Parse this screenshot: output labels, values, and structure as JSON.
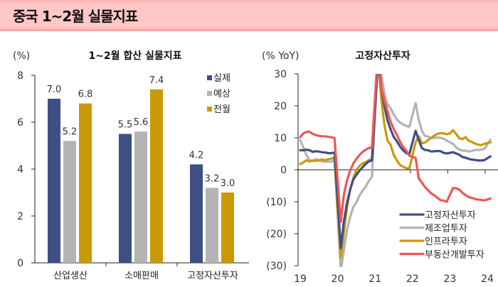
{
  "header": {
    "title": "중국 1~2월 실물지표",
    "background": "#ffc7c7"
  },
  "chart_data": [
    {
      "type": "bar",
      "title": "1~2월 합산 실물지표",
      "ylabel": "(%)",
      "xlabel": "",
      "ylim": [
        0,
        8
      ],
      "yticks": [
        "0",
        "2",
        "4",
        "6",
        "8"
      ],
      "categories": [
        "산업생산",
        "소매판매",
        "고정자산투자"
      ],
      "series": [
        {
          "name": "실제",
          "color": "#3f4f86",
          "values": [
            7.0,
            5.5,
            4.2
          ],
          "labels": [
            "7.0",
            "5.5",
            "4.2"
          ]
        },
        {
          "name": "예상",
          "color": "#b3b3b3",
          "values": [
            5.2,
            5.6,
            3.2
          ],
          "labels": [
            "5.2",
            "5.6",
            "3.2"
          ]
        },
        {
          "name": "전월",
          "color": "#c99a06",
          "values": [
            6.8,
            7.4,
            3.0
          ],
          "labels": [
            "6.8",
            "7.4",
            "3.0"
          ]
        }
      ],
      "legend_position": "upper right",
      "grid": false
    },
    {
      "type": "line",
      "title": "고정자산투자",
      "ylabel": "(% YoY)",
      "xlabel": "",
      "ylim": [
        -30,
        30
      ],
      "yticks": [
        "(30)",
        "(20)",
        "(10)",
        "0",
        "10",
        "20",
        "30"
      ],
      "xticks": [
        "19",
        "20",
        "21",
        "22",
        "23",
        "24"
      ],
      "x_unit": "monthly, Jan 2019 - Feb 2024 (year-to-date YoY)",
      "legend_position": "lower right",
      "grid": false,
      "series": [
        {
          "name": "고정자산투자",
          "color": "#3f4f86",
          "points": [
            [
              0,
              6.1
            ],
            [
              1,
              6.1
            ],
            [
              2,
              6.3
            ],
            [
              3,
              6.1
            ],
            [
              4,
              5.6
            ],
            [
              5,
              5.8
            ],
            [
              6,
              5.7
            ],
            [
              7,
              5.5
            ],
            [
              8,
              5.4
            ],
            [
              9,
              5.2
            ],
            [
              10,
              5.2
            ],
            [
              11,
              5.4
            ],
            [
              13,
              -24.5
            ],
            [
              14,
              -16.1
            ],
            [
              15,
              -10.3
            ],
            [
              16,
              -6.3
            ],
            [
              17,
              -3.1
            ],
            [
              18,
              -1.6
            ],
            [
              19,
              -0.3
            ],
            [
              20,
              0.8
            ],
            [
              21,
              1.8
            ],
            [
              22,
              2.6
            ],
            [
              23,
              2.9
            ],
            [
              25,
              35.0
            ],
            [
              26,
              25.6
            ],
            [
              27,
              19.9
            ],
            [
              28,
              15.4
            ],
            [
              29,
              12.6
            ],
            [
              30,
              10.3
            ],
            [
              31,
              8.9
            ],
            [
              32,
              7.3
            ],
            [
              33,
              6.1
            ],
            [
              34,
              5.2
            ],
            [
              35,
              4.9
            ],
            [
              37,
              12.2
            ],
            [
              38,
              9.3
            ],
            [
              39,
              6.8
            ],
            [
              40,
              6.2
            ],
            [
              41,
              6.1
            ],
            [
              42,
              5.7
            ],
            [
              43,
              5.8
            ],
            [
              44,
              5.9
            ],
            [
              45,
              5.8
            ],
            [
              46,
              5.3
            ],
            [
              47,
              5.1
            ],
            [
              49,
              5.5
            ],
            [
              50,
              5.1
            ],
            [
              51,
              4.7
            ],
            [
              52,
              4.0
            ],
            [
              53,
              3.8
            ],
            [
              54,
              3.4
            ],
            [
              55,
              3.2
            ],
            [
              56,
              3.1
            ],
            [
              57,
              2.9
            ],
            [
              58,
              2.9
            ],
            [
              59,
              3.0
            ],
            [
              61,
              4.2
            ]
          ]
        },
        {
          "name": "제조업투자",
          "color": "#b3b3b3",
          "points": [
            [
              0,
              9.3
            ],
            [
              1,
              7.0
            ],
            [
              2,
              4.6
            ],
            [
              3,
              3.0
            ],
            [
              4,
              2.7
            ],
            [
              5,
              3.3
            ],
            [
              6,
              3.0
            ],
            [
              7,
              2.6
            ],
            [
              8,
              2.5
            ],
            [
              9,
              2.6
            ],
            [
              10,
              2.5
            ],
            [
              11,
              3.1
            ],
            [
              13,
              -31.5
            ],
            [
              14,
              -25.2
            ],
            [
              15,
              -18.8
            ],
            [
              16,
              -14.8
            ],
            [
              17,
              -11.7
            ],
            [
              18,
              -10.2
            ],
            [
              19,
              -8.1
            ],
            [
              20,
              -6.5
            ],
            [
              21,
              -5.3
            ],
            [
              22,
              -3.5
            ],
            [
              23,
              -2.2
            ],
            [
              25,
              37.3
            ],
            [
              26,
              29.8
            ],
            [
              27,
              23.8
            ],
            [
              28,
              20.4
            ],
            [
              29,
              19.2
            ],
            [
              30,
              17.3
            ],
            [
              31,
              15.7
            ],
            [
              32,
              14.8
            ],
            [
              33,
              14.2
            ],
            [
              34,
              13.7
            ],
            [
              35,
              13.5
            ],
            [
              37,
              20.9
            ],
            [
              38,
              15.6
            ],
            [
              39,
              12.2
            ],
            [
              40,
              10.6
            ],
            [
              41,
              10.4
            ],
            [
              42,
              9.9
            ],
            [
              43,
              10.0
            ],
            [
              44,
              10.1
            ],
            [
              45,
              10.0
            ],
            [
              46,
              9.7
            ],
            [
              47,
              9.1
            ],
            [
              49,
              8.1
            ],
            [
              50,
              7.0
            ],
            [
              51,
              6.4
            ],
            [
              52,
              6.0
            ],
            [
              53,
              6.0
            ],
            [
              54,
              5.7
            ],
            [
              55,
              5.9
            ],
            [
              56,
              6.2
            ],
            [
              57,
              6.2
            ],
            [
              58,
              6.3
            ],
            [
              59,
              6.5
            ],
            [
              61,
              9.4
            ]
          ]
        },
        {
          "name": "인프라투자",
          "color": "#c99a06",
          "points": [
            [
              0,
              1.8
            ],
            [
              1,
              2.3
            ],
            [
              2,
              3.0
            ],
            [
              3,
              2.6
            ],
            [
              4,
              2.9
            ],
            [
              5,
              2.8
            ],
            [
              6,
              3.0
            ],
            [
              7,
              3.2
            ],
            [
              8,
              3.0
            ],
            [
              9,
              3.3
            ],
            [
              10,
              3.5
            ],
            [
              11,
              3.8
            ],
            [
              13,
              -27.5
            ],
            [
              14,
              -19.7
            ],
            [
              15,
              -11.8
            ],
            [
              16,
              -6.3
            ],
            [
              17,
              -2.7
            ],
            [
              18,
              -0.1
            ],
            [
              19,
              1.2
            ],
            [
              20,
              2.0
            ],
            [
              21,
              2.4
            ],
            [
              22,
              3.0
            ],
            [
              23,
              3.4
            ],
            [
              25,
              35.0
            ],
            [
              26,
              22.0
            ],
            [
              27,
              14.0
            ],
            [
              28,
              9.1
            ],
            [
              29,
              7.8
            ],
            [
              30,
              4.6
            ],
            [
              31,
              2.9
            ],
            [
              32,
              1.5
            ],
            [
              33,
              1.0
            ],
            [
              34,
              0.5
            ],
            [
              35,
              0.4
            ],
            [
              37,
              8.6
            ],
            [
              38,
              10.5
            ],
            [
              39,
              8.3
            ],
            [
              40,
              8.5
            ],
            [
              41,
              9.3
            ],
            [
              42,
              10.0
            ],
            [
              43,
              10.7
            ],
            [
              44,
              11.2
            ],
            [
              45,
              11.5
            ],
            [
              46,
              11.4
            ],
            [
              47,
              11.1
            ],
            [
              48,
              11.4
            ],
            [
              49,
              12.4
            ],
            [
              50,
              11.2
            ],
            [
              51,
              9.9
            ],
            [
              52,
              9.6
            ],
            [
              53,
              10.2
            ],
            [
              54,
              9.1
            ],
            [
              55,
              8.7
            ],
            [
              56,
              8.2
            ],
            [
              57,
              7.9
            ],
            [
              58,
              7.7
            ],
            [
              59,
              8.1
            ],
            [
              61,
              8.6
            ]
          ]
        },
        {
          "name": "부동산개발투자",
          "color": "#f05555",
          "points": [
            [
              0,
              10.2
            ],
            [
              1,
              11.4
            ],
            [
              2,
              11.8
            ],
            [
              3,
              11.9
            ],
            [
              4,
              11.2
            ],
            [
              5,
              10.9
            ],
            [
              6,
              10.6
            ],
            [
              7,
              10.5
            ],
            [
              8,
              10.5
            ],
            [
              9,
              10.3
            ],
            [
              10,
              10.2
            ],
            [
              11,
              9.9
            ],
            [
              13,
              -16.3
            ],
            [
              14,
              -7.7
            ],
            [
              15,
              -3.3
            ],
            [
              16,
              -0.3
            ],
            [
              17,
              1.9
            ],
            [
              18,
              3.4
            ],
            [
              19,
              4.6
            ],
            [
              20,
              5.6
            ],
            [
              21,
              6.3
            ],
            [
              22,
              6.8
            ],
            [
              23,
              7.0
            ],
            [
              25,
              38.3
            ],
            [
              26,
              25.6
            ],
            [
              27,
              21.6
            ],
            [
              28,
              18.3
            ],
            [
              29,
              15.0
            ],
            [
              30,
              12.7
            ],
            [
              31,
              10.9
            ],
            [
              32,
              8.8
            ],
            [
              33,
              7.2
            ],
            [
              34,
              6.0
            ],
            [
              35,
              4.4
            ],
            [
              37,
              3.7
            ],
            [
              38,
              -2.7
            ],
            [
              39,
              -4.0
            ],
            [
              40,
              -5.4
            ],
            [
              41,
              -6.4
            ],
            [
              42,
              -7.4
            ],
            [
              43,
              -8.0
            ],
            [
              44,
              -8.8
            ],
            [
              45,
              -9.5
            ],
            [
              46,
              -9.7
            ],
            [
              47,
              -10.0
            ],
            [
              49,
              -5.7
            ],
            [
              50,
              -5.8
            ],
            [
              51,
              -6.2
            ],
            [
              52,
              -7.2
            ],
            [
              53,
              -7.9
            ],
            [
              54,
              -8.5
            ],
            [
              55,
              -8.8
            ],
            [
              56,
              -9.1
            ],
            [
              57,
              -9.3
            ],
            [
              58,
              -9.4
            ],
            [
              59,
              -9.6
            ],
            [
              61,
              -9.0
            ]
          ]
        }
      ]
    }
  ]
}
